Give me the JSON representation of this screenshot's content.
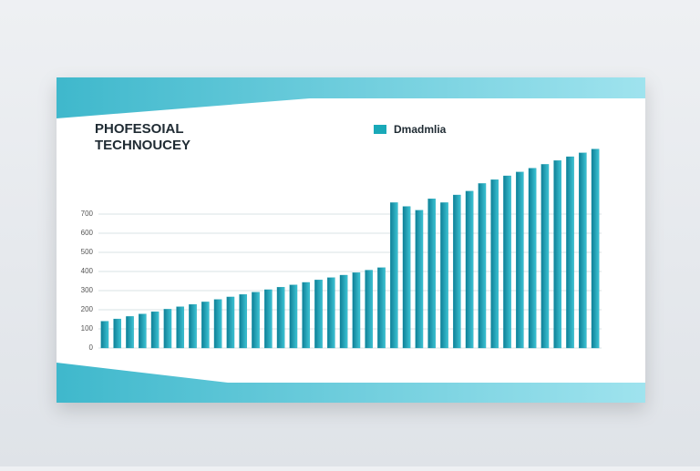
{
  "chart_data": {
    "type": "bar",
    "title": "PHOFESOIAL",
    "subtitle": "TECHNOUCEY",
    "legend_label": "Dmadmlia",
    "values": [
      140,
      152,
      165,
      178,
      190,
      203,
      216,
      228,
      241,
      254,
      267,
      280,
      292,
      305,
      318,
      330,
      343,
      356,
      368,
      381,
      394,
      407,
      420,
      760,
      740,
      720,
      780,
      760,
      800,
      820,
      860,
      880,
      900,
      920,
      940,
      960,
      980,
      1000,
      1020,
      1040
    ],
    "color": "#1a9fb2",
    "ylim": [
      0,
      1200
    ],
    "yticks": [
      0,
      100,
      200,
      300,
      400,
      500,
      600,
      700
    ],
    "grid": true
  }
}
